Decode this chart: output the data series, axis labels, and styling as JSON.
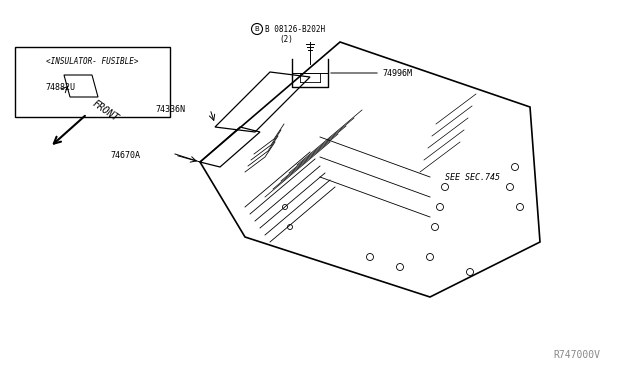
{
  "bg_color": "#ffffff",
  "line_color": "#000000",
  "text_color": "#000000",
  "fig_width": 6.4,
  "fig_height": 3.72,
  "dpi": 100,
  "watermark": "R747000V",
  "labels": {
    "insulator_box_title": "<INSULATOR- FUSIBLE>",
    "insulator_part": "74882U",
    "bolt_label": "B 08126-B202H",
    "bolt_qty": "(2)",
    "bracket_label": "74996M",
    "floor_label1": "74670A",
    "floor_label2": "74336N",
    "see_sec": "SEE SEC.745",
    "front_label": "FRONT"
  }
}
